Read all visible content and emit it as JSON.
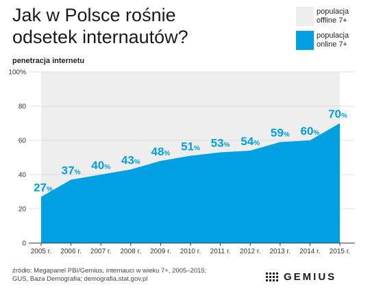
{
  "title": "Jak w Polsce rośnie odsetek internautów?",
  "legend": [
    {
      "label": "populacja offline 7+",
      "color": "#eeeeee"
    },
    {
      "label": "populacja online 7+",
      "color": "#00a0e3"
    }
  ],
  "source": "źródło: Megapanel PBI/Gemius, internauci w wieku 7+, 2005–2015; GUS, Baza Demografia; demografia.stat.gov.pl",
  "brand": "GEMIUS",
  "colors": {
    "online": "#00a0e3",
    "offline": "#eeeeee",
    "label": "#00a0e3"
  },
  "chart_data": {
    "type": "area",
    "ylabel": "penetracja internetu",
    "categories": [
      "2005 r.",
      "2006 r.",
      "2007 r.",
      "2008 r.",
      "2009 r.",
      "2010 r.",
      "2011 r.",
      "2012 r.",
      "2013 r.",
      "2014 r.",
      "2015 r."
    ],
    "values": [
      27,
      37,
      40,
      43,
      48,
      51,
      53,
      54,
      59,
      60,
      70
    ],
    "unit": "%",
    "ylim": [
      0,
      100
    ],
    "yticks": [
      0,
      20,
      40,
      60,
      80,
      "100%"
    ],
    "grid": true
  }
}
